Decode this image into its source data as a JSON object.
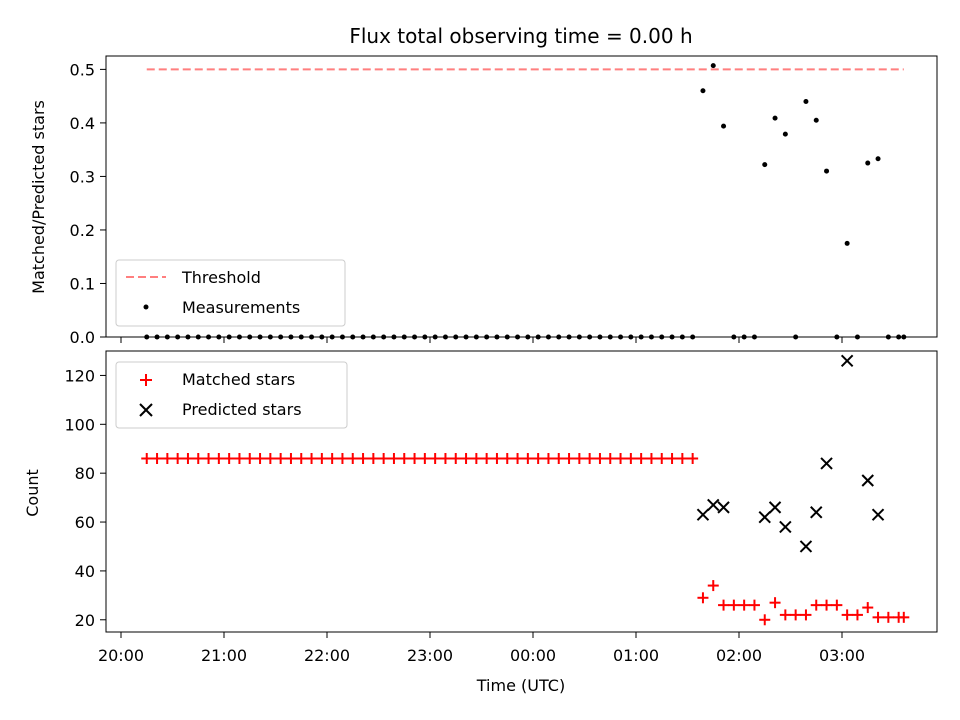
{
  "chart_data": [
    {
      "type": "scatter",
      "title": "Flux total observing time = 0.00 h",
      "xlabel": "",
      "ylabel": "Matched/Predicted stars",
      "ylim": [
        0,
        0.525
      ],
      "yticks": [
        "0.0",
        "0.1",
        "0.2",
        "0.3",
        "0.4",
        "0.5"
      ],
      "legend_position": "lower-left",
      "threshold": {
        "name": "Threshold",
        "value": 0.5,
        "x_start": "20:15",
        "x_end": "03:36",
        "color": "#ff7f7f",
        "style": "dashed"
      },
      "series": [
        {
          "name": "Measurements",
          "color": "#000000",
          "marker": "dot",
          "points": [
            [
              "20:15",
              0
            ],
            [
              "20:21",
              0
            ],
            [
              "20:27",
              0
            ],
            [
              "20:33",
              0
            ],
            [
              "20:39",
              0
            ],
            [
              "20:45",
              0
            ],
            [
              "20:51",
              0
            ],
            [
              "20:57",
              0
            ],
            [
              "21:03",
              0
            ],
            [
              "21:09",
              0
            ],
            [
              "21:15",
              0
            ],
            [
              "21:21",
              0
            ],
            [
              "21:27",
              0
            ],
            [
              "21:33",
              0
            ],
            [
              "21:39",
              0
            ],
            [
              "21:45",
              0
            ],
            [
              "21:51",
              0
            ],
            [
              "21:57",
              0
            ],
            [
              "22:03",
              0
            ],
            [
              "22:09",
              0
            ],
            [
              "22:15",
              0
            ],
            [
              "22:21",
              0
            ],
            [
              "22:27",
              0
            ],
            [
              "22:33",
              0
            ],
            [
              "22:39",
              0
            ],
            [
              "22:45",
              0
            ],
            [
              "22:51",
              0
            ],
            [
              "22:57",
              0
            ],
            [
              "23:03",
              0
            ],
            [
              "23:09",
              0
            ],
            [
              "23:15",
              0
            ],
            [
              "23:21",
              0
            ],
            [
              "23:27",
              0
            ],
            [
              "23:33",
              0
            ],
            [
              "23:39",
              0
            ],
            [
              "23:45",
              0
            ],
            [
              "23:51",
              0
            ],
            [
              "23:57",
              0
            ],
            [
              "00:03",
              0
            ],
            [
              "00:09",
              0
            ],
            [
              "00:15",
              0
            ],
            [
              "00:21",
              0
            ],
            [
              "00:27",
              0
            ],
            [
              "00:33",
              0
            ],
            [
              "00:39",
              0
            ],
            [
              "00:45",
              0
            ],
            [
              "00:51",
              0
            ],
            [
              "00:57",
              0
            ],
            [
              "01:03",
              0
            ],
            [
              "01:09",
              0
            ],
            [
              "01:15",
              0
            ],
            [
              "01:21",
              0
            ],
            [
              "01:27",
              0
            ],
            [
              "01:33",
              0
            ],
            [
              "01:39",
              0.46
            ],
            [
              "01:45",
              0.507
            ],
            [
              "01:51",
              0.394
            ],
            [
              "01:57",
              0
            ],
            [
              "02:03",
              0
            ],
            [
              "02:09",
              0
            ],
            [
              "02:15",
              0.322
            ],
            [
              "02:21",
              0.409
            ],
            [
              "02:27",
              0.379
            ],
            [
              "02:33",
              0
            ],
            [
              "02:39",
              0.44
            ],
            [
              "02:45",
              0.405
            ],
            [
              "02:51",
              0.31
            ],
            [
              "02:57",
              0
            ],
            [
              "03:03",
              0.175
            ],
            [
              "03:09",
              0
            ],
            [
              "03:15",
              0.325
            ],
            [
              "03:21",
              0.333
            ],
            [
              "03:27",
              0
            ],
            [
              "03:33",
              0
            ],
            [
              "03:36",
              0
            ]
          ]
        }
      ]
    },
    {
      "type": "scatter",
      "title": "",
      "xlabel": "Time (UTC)",
      "ylabel": "Count",
      "ylim": [
        15,
        130
      ],
      "yticks": [
        "20",
        "40",
        "60",
        "80",
        "100",
        "120"
      ],
      "xticks": [
        "20:00",
        "21:00",
        "22:00",
        "23:00",
        "00:00",
        "01:00",
        "02:00",
        "03:00"
      ],
      "legend_position": "upper-left",
      "series": [
        {
          "name": "Matched stars",
          "color": "#ff0000",
          "marker": "plus",
          "points": [
            [
              "20:15",
              86
            ],
            [
              "20:21",
              86
            ],
            [
              "20:27",
              86
            ],
            [
              "20:33",
              86
            ],
            [
              "20:39",
              86
            ],
            [
              "20:45",
              86
            ],
            [
              "20:51",
              86
            ],
            [
              "20:57",
              86
            ],
            [
              "21:03",
              86
            ],
            [
              "21:09",
              86
            ],
            [
              "21:15",
              86
            ],
            [
              "21:21",
              86
            ],
            [
              "21:27",
              86
            ],
            [
              "21:33",
              86
            ],
            [
              "21:39",
              86
            ],
            [
              "21:45",
              86
            ],
            [
              "21:51",
              86
            ],
            [
              "21:57",
              86
            ],
            [
              "22:03",
              86
            ],
            [
              "22:09",
              86
            ],
            [
              "22:15",
              86
            ],
            [
              "22:21",
              86
            ],
            [
              "22:27",
              86
            ],
            [
              "22:33",
              86
            ],
            [
              "22:39",
              86
            ],
            [
              "22:45",
              86
            ],
            [
              "22:51",
              86
            ],
            [
              "22:57",
              86
            ],
            [
              "23:03",
              86
            ],
            [
              "23:09",
              86
            ],
            [
              "23:15",
              86
            ],
            [
              "23:21",
              86
            ],
            [
              "23:27",
              86
            ],
            [
              "23:33",
              86
            ],
            [
              "23:39",
              86
            ],
            [
              "23:45",
              86
            ],
            [
              "23:51",
              86
            ],
            [
              "23:57",
              86
            ],
            [
              "00:03",
              86
            ],
            [
              "00:09",
              86
            ],
            [
              "00:15",
              86
            ],
            [
              "00:21",
              86
            ],
            [
              "00:27",
              86
            ],
            [
              "00:33",
              86
            ],
            [
              "00:39",
              86
            ],
            [
              "00:45",
              86
            ],
            [
              "00:51",
              86
            ],
            [
              "00:57",
              86
            ],
            [
              "01:03",
              86
            ],
            [
              "01:09",
              86
            ],
            [
              "01:15",
              86
            ],
            [
              "01:21",
              86
            ],
            [
              "01:27",
              86
            ],
            [
              "01:33",
              86
            ],
            [
              "01:39",
              29
            ],
            [
              "01:45",
              34
            ],
            [
              "01:51",
              26
            ],
            [
              "01:57",
              26
            ],
            [
              "02:03",
              26
            ],
            [
              "02:09",
              26
            ],
            [
              "02:15",
              20
            ],
            [
              "02:21",
              27
            ],
            [
              "02:27",
              22
            ],
            [
              "02:33",
              22
            ],
            [
              "02:39",
              22
            ],
            [
              "02:45",
              26
            ],
            [
              "02:51",
              26
            ],
            [
              "02:57",
              26
            ],
            [
              "03:03",
              22
            ],
            [
              "03:09",
              22
            ],
            [
              "03:15",
              25
            ],
            [
              "03:21",
              21
            ],
            [
              "03:27",
              21
            ],
            [
              "03:33",
              21
            ],
            [
              "03:36",
              21
            ]
          ]
        },
        {
          "name": "Predicted stars",
          "color": "#000000",
          "marker": "x",
          "points": [
            [
              "01:39",
              63
            ],
            [
              "01:45",
              67
            ],
            [
              "01:51",
              66
            ],
            [
              "02:15",
              62
            ],
            [
              "02:21",
              66
            ],
            [
              "02:27",
              58
            ],
            [
              "02:39",
              50
            ],
            [
              "02:45",
              64
            ],
            [
              "02:51",
              84
            ],
            [
              "03:03",
              126
            ],
            [
              "03:15",
              77
            ],
            [
              "03:21",
              63
            ]
          ]
        }
      ]
    }
  ]
}
